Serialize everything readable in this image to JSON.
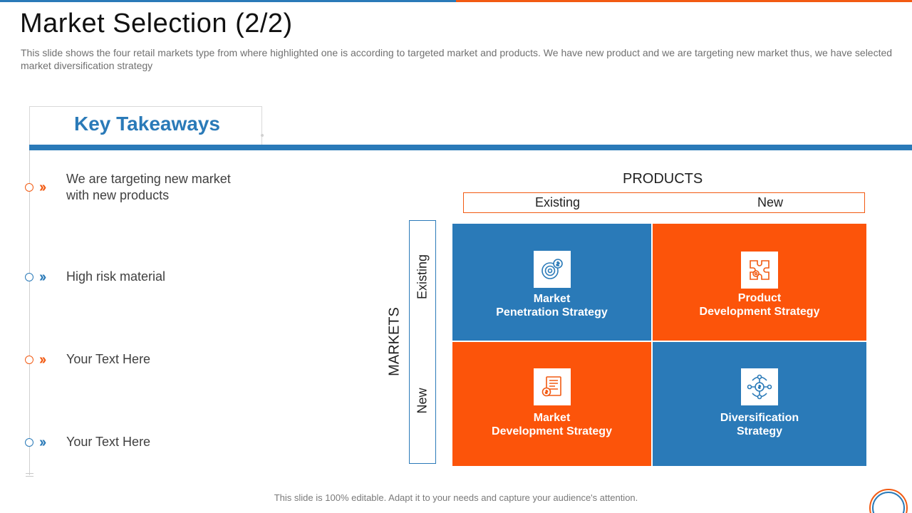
{
  "slide": {
    "title": "Market Selection (2/2)",
    "subtitle": "This slide shows the four retail markets type from where highlighted one is according to targeted market and products. We have new product and we are targeting new market thus, we have selected market diversification strategy",
    "footer": "This slide is 100% editable. Adapt it to your needs and capture your audience's attention."
  },
  "key_takeaways": {
    "heading": "Key Takeaways",
    "items": [
      {
        "text": "We are targeting new market with new products",
        "color": "#f25a12",
        "icon": "double-chevron-right-icon"
      },
      {
        "text": "High risk material",
        "color": "#2a7ab8",
        "icon": "double-chevron-right-icon"
      },
      {
        "text": "Your Text Here",
        "color": "#f25a12",
        "icon": "double-chevron-right-icon"
      },
      {
        "text": "Your Text Here",
        "color": "#2a7ab8",
        "icon": "double-chevron-right-icon"
      }
    ]
  },
  "matrix": {
    "products_label": "PRODUCTS",
    "product_columns": [
      "Existing",
      "New"
    ],
    "markets_label": "MARKETS",
    "market_rows": [
      "Existing",
      "New"
    ],
    "cells": [
      {
        "label": "Market\nPenetration Strategy",
        "color": "#2a7ab8",
        "icon": "target-dollar-icon"
      },
      {
        "label": "Product\nDevelopment Strategy",
        "color": "#fc540a",
        "icon": "puzzle-gear-icon"
      },
      {
        "label": "Market\nDevelopment Strategy",
        "color": "#fc540a",
        "icon": "document-chart-icon"
      },
      {
        "label": "Diversification\nStrategy",
        "color": "#2a7ab8",
        "icon": "diversification-circle-icon"
      }
    ]
  },
  "colors": {
    "blue": "#2a7ab8",
    "orange": "#f25a12"
  }
}
